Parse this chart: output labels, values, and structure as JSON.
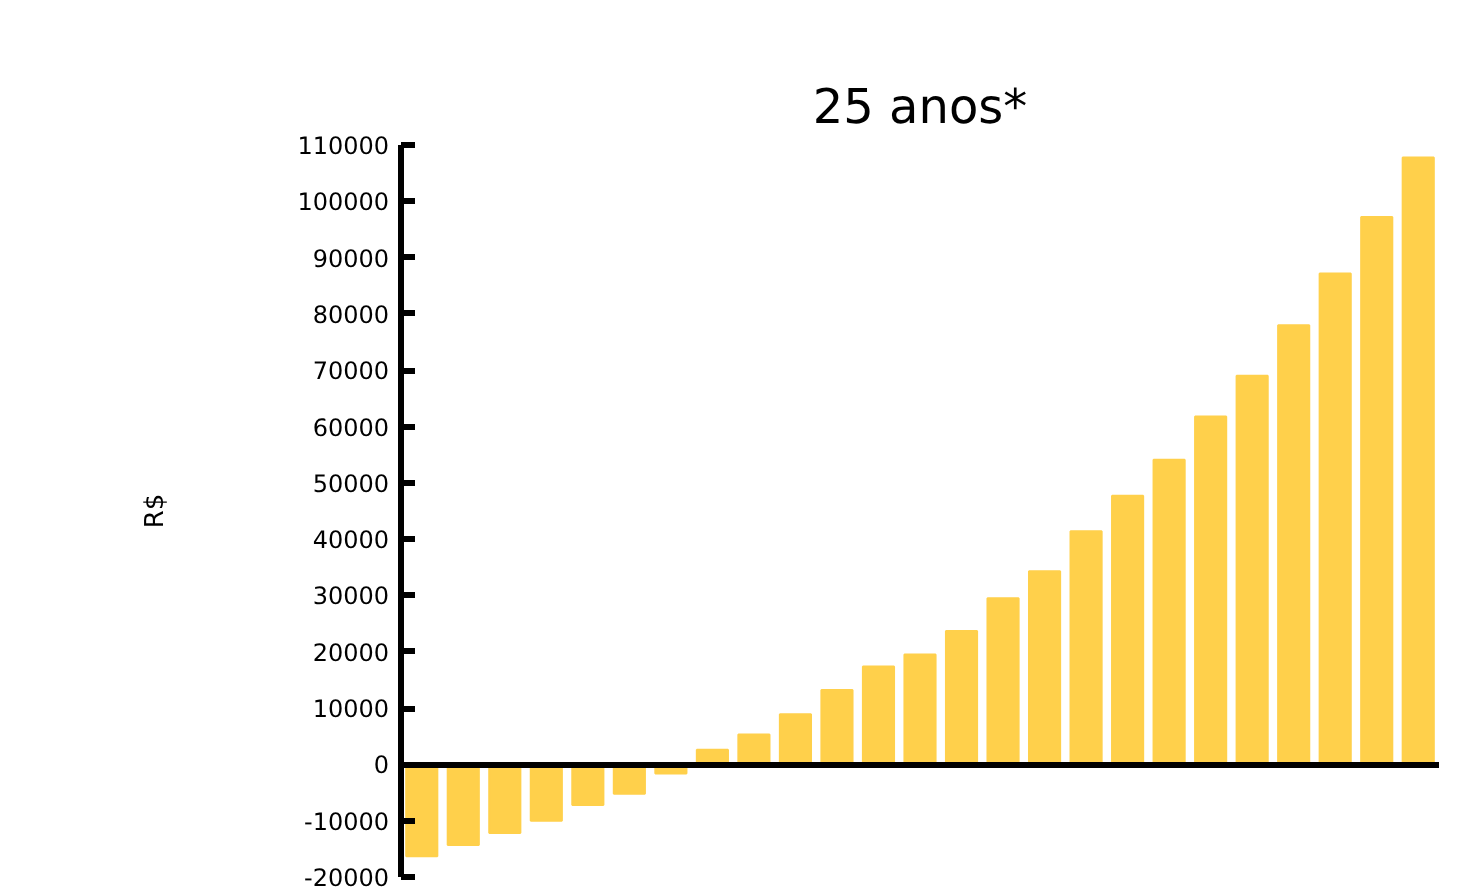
{
  "chart_data": {
    "type": "bar",
    "title": "25 anos*",
    "ylabel": "R$",
    "categories": [
      null,
      null,
      null,
      null,
      null,
      null,
      null,
      null,
      null,
      null,
      null,
      null,
      null,
      null,
      null,
      null,
      null,
      null,
      null,
      null,
      null,
      null,
      null,
      null,
      null
    ],
    "values": [
      -16300,
      -14300,
      -12200,
      -10000,
      -7200,
      -5200,
      -1600,
      2600,
      5300,
      8900,
      13200,
      17400,
      19500,
      23700,
      29500,
      34300,
      41400,
      47700,
      54100,
      61800,
      69000,
      78000,
      87200,
      97200,
      107800
    ],
    "color": "#ffd04b",
    "ylim": [
      -20000,
      110000
    ],
    "yticks": [
      -20000,
      -10000,
      0,
      10000,
      20000,
      30000,
      40000,
      50000,
      60000,
      70000,
      80000,
      90000,
      100000,
      110000
    ],
    "tick_labels": "y"
  }
}
